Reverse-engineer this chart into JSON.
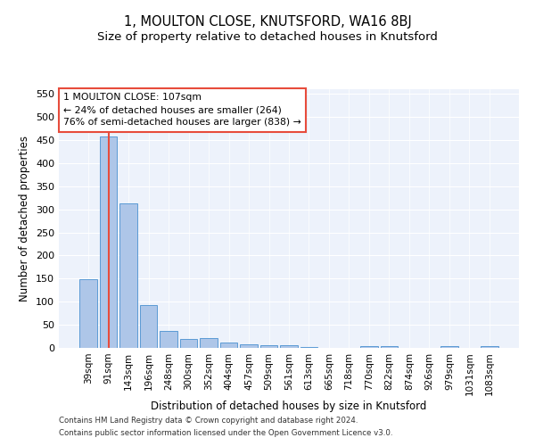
{
  "title": "1, MOULTON CLOSE, KNUTSFORD, WA16 8BJ",
  "subtitle": "Size of property relative to detached houses in Knutsford",
  "xlabel": "Distribution of detached houses by size in Knutsford",
  "ylabel": "Number of detached properties",
  "categories": [
    "39sqm",
    "91sqm",
    "143sqm",
    "196sqm",
    "248sqm",
    "300sqm",
    "352sqm",
    "404sqm",
    "457sqm",
    "509sqm",
    "561sqm",
    "613sqm",
    "665sqm",
    "718sqm",
    "770sqm",
    "822sqm",
    "874sqm",
    "926sqm",
    "979sqm",
    "1031sqm",
    "1083sqm"
  ],
  "values": [
    148,
    458,
    313,
    92,
    36,
    20,
    21,
    12,
    8,
    5,
    5,
    2,
    0,
    0,
    3,
    3,
    0,
    0,
    3,
    0,
    3
  ],
  "bar_color": "#aec6e8",
  "bar_edge_color": "#5b9bd5",
  "vline_x": 1,
  "vline_color": "#e74c3c",
  "annotation_text": "1 MOULTON CLOSE: 107sqm\n← 24% of detached houses are smaller (264)\n76% of semi-detached houses are larger (838) →",
  "annotation_box_color": "white",
  "annotation_box_edge": "#e74c3c",
  "ylim": [
    0,
    560
  ],
  "yticks": [
    0,
    50,
    100,
    150,
    200,
    250,
    300,
    350,
    400,
    450,
    500,
    550
  ],
  "bg_color": "#edf2fb",
  "footer_line1": "Contains HM Land Registry data © Crown copyright and database right 2024.",
  "footer_line2": "Contains public sector information licensed under the Open Government Licence v3.0.",
  "title_fontsize": 10.5,
  "subtitle_fontsize": 9.5,
  "xlabel_fontsize": 8.5,
  "ylabel_fontsize": 8.5,
  "tick_fontsize": 7.5,
  "ytick_fontsize": 8,
  "footer_fontsize": 6.2
}
